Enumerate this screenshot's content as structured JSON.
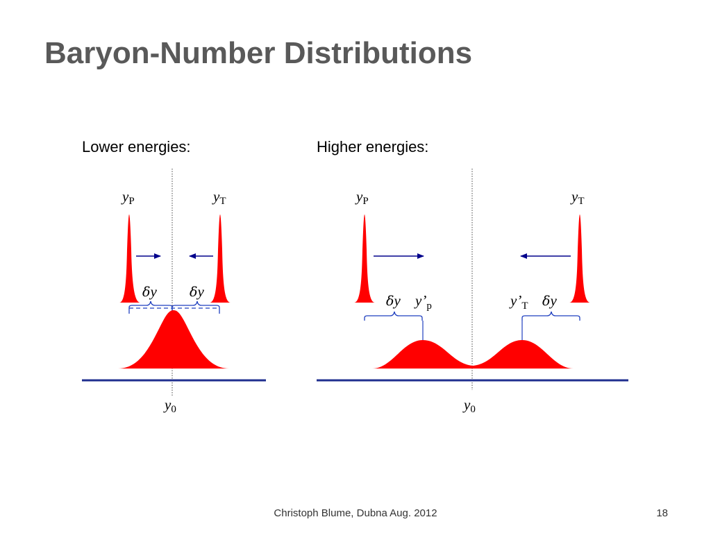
{
  "slide": {
    "title": "Baryon-Number Distributions",
    "footer": "Christoph Blume, Dubna Aug. 2012",
    "page_number": "18"
  },
  "panels": [
    {
      "label": "Lower energies:",
      "symbols": {
        "yP_main": "y",
        "yP_sub": "P",
        "yT_main": "y",
        "yT_sub": "T",
        "dy_left_d": "δ",
        "dy_left_y": "y",
        "dy_right_d": "δ",
        "dy_right_y": "y",
        "y0_main": "y",
        "y0_sub": "0"
      }
    },
    {
      "label": "Higher energies:",
      "symbols": {
        "yP_main": "y",
        "yP_sub": "P",
        "yT_main": "y",
        "yT_sub": "T",
        "dy_left_d": "δ",
        "dy_left_y": "y",
        "dy_right_d": "δ",
        "dy_right_y": "y",
        "yp_prime_main": "y’",
        "yp_prime_sub": "p",
        "yt_prime_main": "y’",
        "yt_prime_sub": "T",
        "y0_main": "y",
        "y0_sub": "0"
      }
    }
  ],
  "colors": {
    "distribution_fill": "#ff0000",
    "axis": "#1f2f8f",
    "arrow": "#00008b",
    "brace": "#1f3fbf",
    "title": "#595959"
  }
}
